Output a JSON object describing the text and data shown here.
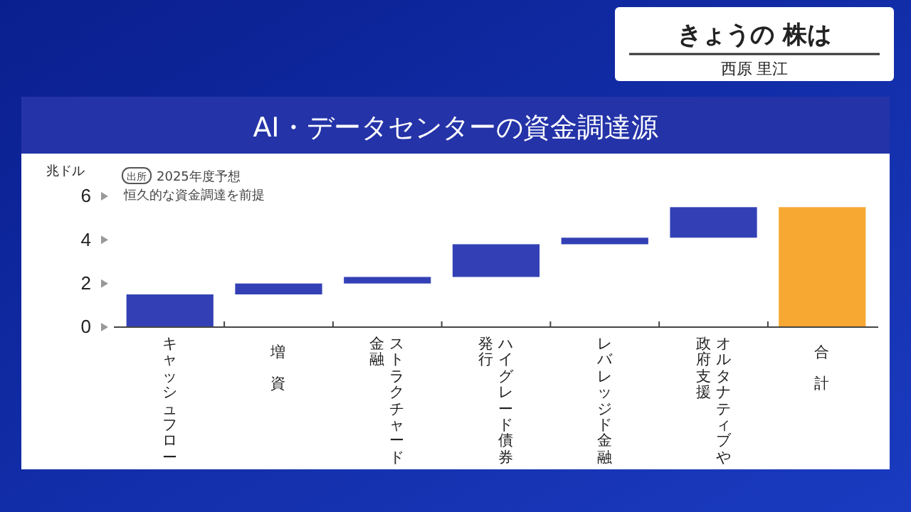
{
  "chart_data": {
    "type": "bar",
    "title": "AI・データセンターの資金調達源",
    "ylabel": "兆ドル",
    "categories": [
      "キャッシュフロー",
      "増資",
      "ストラクチャード金融",
      "ハイグレード債券発行",
      "レバレッジド金融",
      "オルタナティブや政府支援",
      "合計"
    ],
    "values": [
      1.5,
      0.5,
      0.3,
      1.5,
      0.3,
      1.4,
      5.5
    ],
    "base": [
      0,
      1.5,
      2.0,
      2.3,
      3.8,
      4.1,
      0
    ],
    "colors": [
      "#3340b5",
      "#3340b5",
      "#3340b5",
      "#3340b5",
      "#3340b5",
      "#3340b5",
      "#f7a833"
    ],
    "ylim": [
      0,
      6
    ],
    "yticks": [
      0,
      2,
      4,
      6
    ],
    "grid": false,
    "annotations": [
      "出所",
      "2025年度予想",
      "恒久的な資金調達を前提",
      "きょうの 株は",
      "西原 里江"
    ]
  }
}
